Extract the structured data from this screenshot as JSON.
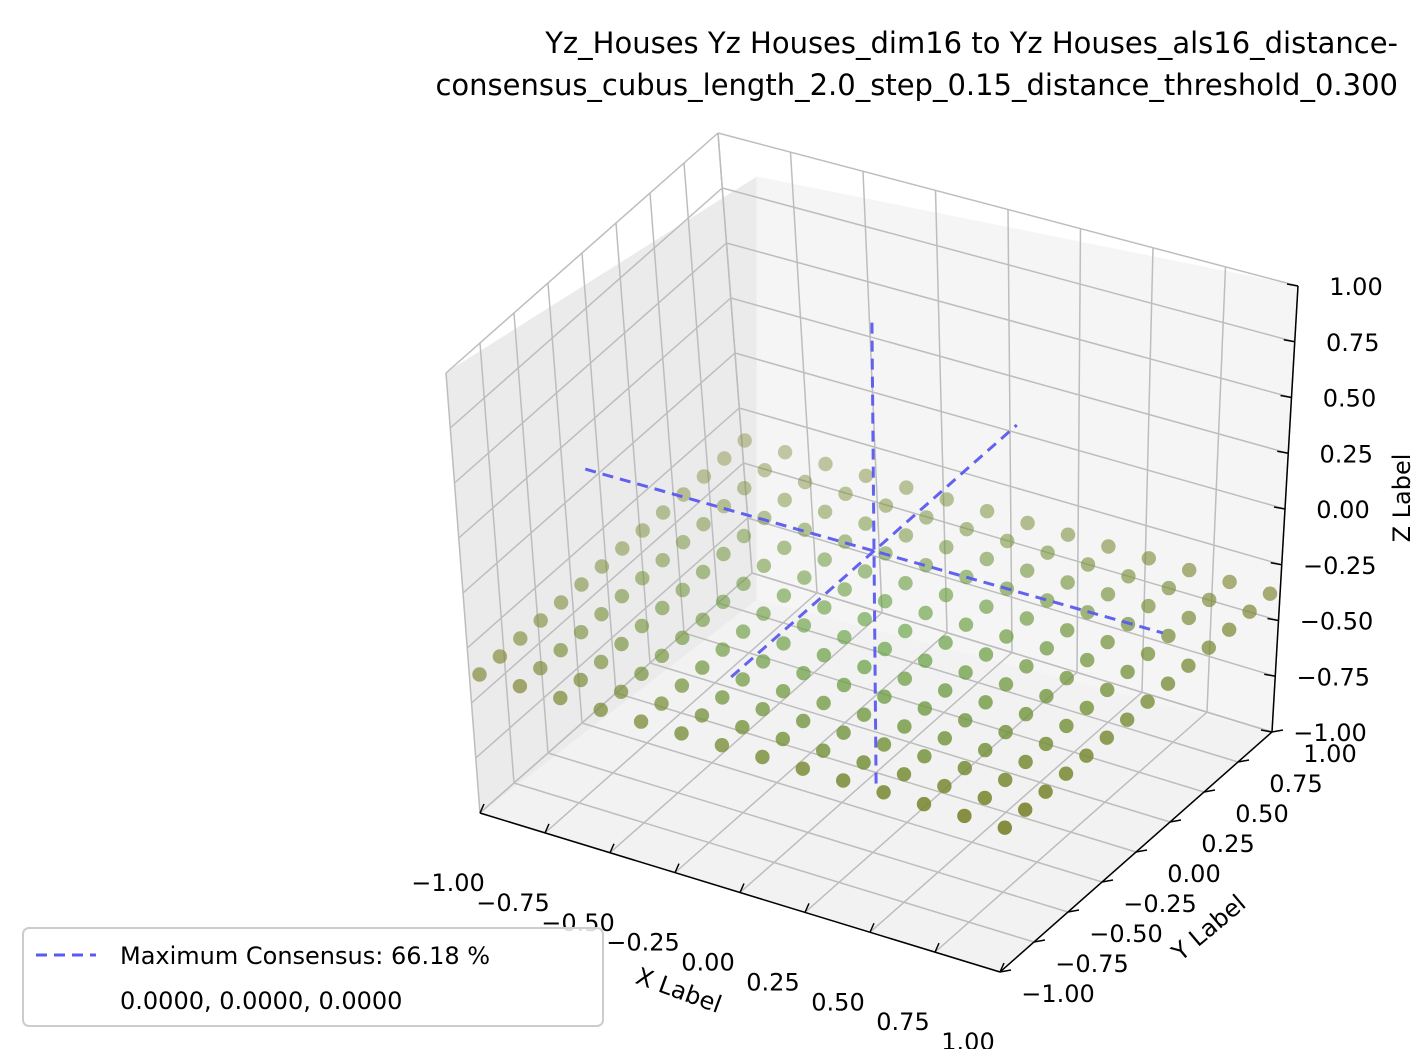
{
  "chart_data": {
    "type": "scatter3d",
    "title": "Yz_Houses Yz Houses_dim16 to Yz Houses_als16_distance-consensus_cubus_length_2.0_step_0.15_distance_threshold_0.300",
    "title_lines": [
      "Yz_Houses Yz Houses_dim16 to Yz Houses_als16_distance-",
      "consensus_cubus_length_2.0_step_0.15_distance_threshold_0.300"
    ],
    "xlabel": "X Label",
    "ylabel": "Y Label",
    "zlabel": "Z Label",
    "xlim": [
      -1.0,
      1.0
    ],
    "ylim": [
      -1.0,
      1.0
    ],
    "zlim": [
      -1.0,
      1.0
    ],
    "x_ticks": [
      "−1.00",
      "−0.75",
      "−0.50",
      "−0.25",
      "0.00",
      "0.25",
      "0.50",
      "0.75",
      "1.00"
    ],
    "y_ticks": [
      "−1.00",
      "−0.75",
      "−0.50",
      "−0.25",
      "0.00",
      "0.25",
      "0.50",
      "0.75",
      "1.00"
    ],
    "z_ticks": [
      "−1.00",
      "−0.75",
      "−0.50",
      "−0.25",
      "0.00",
      "0.25",
      "0.50",
      "0.75",
      "1.00"
    ],
    "grid": true,
    "scatter": {
      "step": 0.15,
      "start": -0.975,
      "count_per_axis": 14,
      "z": -0.375,
      "color_edge": "#7f8633",
      "color_center": "#63a647"
    },
    "consensus_point": [
      0.0,
      0.0,
      0.0
    ],
    "consensus_line_color": "#5a5af0",
    "legend": {
      "position": "lower-left",
      "entries": [
        "Maximum Consensus: 66.18 %",
        "0.0000, 0.0000, 0.0000"
      ]
    }
  }
}
